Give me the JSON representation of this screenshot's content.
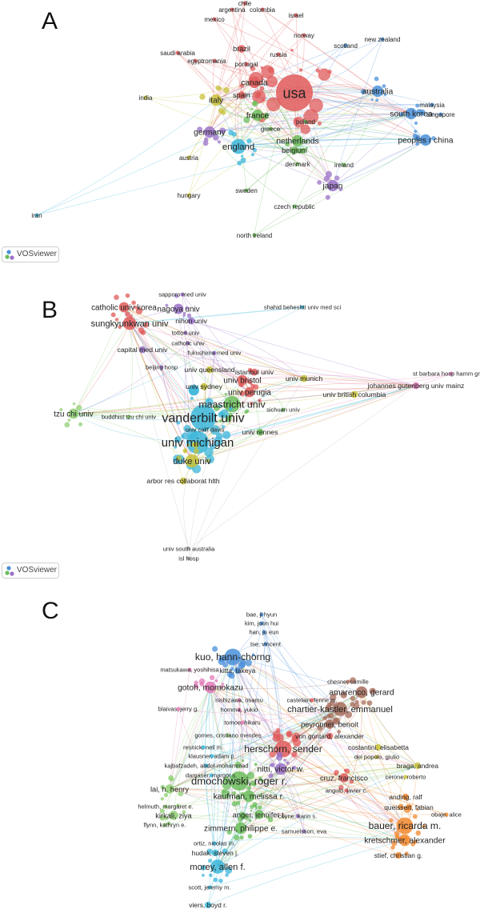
{
  "branding": {
    "vosviewer_label": "VOSviewer"
  },
  "panels": {
    "a": {
      "letter": "A"
    },
    "b": {
      "letter": "B"
    },
    "c": {
      "letter": "C"
    }
  },
  "cluster_colors": {
    "red": "#e05a5a",
    "blue": "#4a90d9",
    "green": "#6bbd5b",
    "yellow": "#c8c23a",
    "purple": "#9a72c8",
    "cyan": "#3bb6d9",
    "orange": "#f28a30",
    "pink": "#e27ab8",
    "brown": "#a56b5a",
    "lightgreen": "#8fcf72",
    "teal": "#2ea39a",
    "gray": "#b8b8b8"
  },
  "networks": {
    "a": {
      "nodes": [
        {
          "label": "usa",
          "cluster": "red",
          "weight": 10
        },
        {
          "label": "chile",
          "cluster": "red",
          "weight": 1
        },
        {
          "label": "argentina",
          "cluster": "red",
          "weight": 1
        },
        {
          "label": "colombia",
          "cluster": "red",
          "weight": 1
        },
        {
          "label": "mexico",
          "cluster": "red",
          "weight": 1
        },
        {
          "label": "israel",
          "cluster": "red",
          "weight": 1
        },
        {
          "label": "brazil",
          "cluster": "red",
          "weight": 2
        },
        {
          "label": "norway",
          "cluster": "red",
          "weight": 1
        },
        {
          "label": "saudi arabia",
          "cluster": "red",
          "weight": 1
        },
        {
          "label": "egypt",
          "cluster": "red",
          "weight": 1
        },
        {
          "label": "romania",
          "cluster": "red",
          "weight": 1
        },
        {
          "label": "portugal",
          "cluster": "red",
          "weight": 1
        },
        {
          "label": "russia",
          "cluster": "red",
          "weight": 1
        },
        {
          "label": "canada",
          "cluster": "red",
          "weight": 3
        },
        {
          "label": "spain",
          "cluster": "red",
          "weight": 2
        },
        {
          "label": "scotland",
          "cluster": "blue",
          "weight": 1
        },
        {
          "label": "new zealand",
          "cluster": "blue",
          "weight": 1
        },
        {
          "label": "australia",
          "cluster": "blue",
          "weight": 3
        },
        {
          "label": "malaysia",
          "cluster": "blue",
          "weight": 1
        },
        {
          "label": "singapore",
          "cluster": "blue",
          "weight": 1
        },
        {
          "label": "south korea",
          "cluster": "blue",
          "weight": 3
        },
        {
          "label": "peoples r china",
          "cluster": "blue",
          "weight": 3
        },
        {
          "label": "india",
          "cluster": "yellow",
          "weight": 1
        },
        {
          "label": "italy",
          "cluster": "yellow",
          "weight": 3
        },
        {
          "label": "austria",
          "cluster": "yellow",
          "weight": 1
        },
        {
          "label": "hungary",
          "cluster": "yellow",
          "weight": 1
        },
        {
          "label": "france",
          "cluster": "green",
          "weight": 3
        },
        {
          "label": "greece",
          "cluster": "green",
          "weight": 1
        },
        {
          "label": "poland",
          "cluster": "green",
          "weight": 1
        },
        {
          "label": "netherlands",
          "cluster": "green",
          "weight": 3
        },
        {
          "label": "belgium",
          "cluster": "green",
          "weight": 2
        },
        {
          "label": "denmark",
          "cluster": "green",
          "weight": 1
        },
        {
          "label": "ireland",
          "cluster": "green",
          "weight": 1
        },
        {
          "label": "sweden",
          "cluster": "green",
          "weight": 1
        },
        {
          "label": "czech republic",
          "cluster": "green",
          "weight": 1
        },
        {
          "label": "north ireland",
          "cluster": "green",
          "weight": 1
        },
        {
          "label": "germany",
          "cluster": "purple",
          "weight": 3
        },
        {
          "label": "japan",
          "cluster": "purple",
          "weight": 3
        },
        {
          "label": "england",
          "cluster": "cyan",
          "weight": 4
        },
        {
          "label": "iran",
          "cluster": "cyan",
          "weight": 1
        }
      ]
    },
    "b": {
      "nodes": [
        {
          "label": "sapporo med univ",
          "cluster": "purple",
          "weight": 1
        },
        {
          "label": "catholic univ korea",
          "cluster": "red",
          "weight": 3
        },
        {
          "label": "nagoya univ",
          "cluster": "purple",
          "weight": 3
        },
        {
          "label": "nihon univ",
          "cluster": "purple",
          "weight": 2
        },
        {
          "label": "sungkyunkwan univ",
          "cluster": "red",
          "weight": 4
        },
        {
          "label": "tottori univ",
          "cluster": "purple",
          "weight": 1
        },
        {
          "label": "catholic univ",
          "cluster": "purple",
          "weight": 1
        },
        {
          "label": "shahid beheshti univ med sci",
          "cluster": "cyan",
          "weight": 1
        },
        {
          "label": "capital med univ",
          "cluster": "purple",
          "weight": 2
        },
        {
          "label": "fukushima med univ",
          "cluster": "purple",
          "weight": 1
        },
        {
          "label": "beijing hosp",
          "cluster": "purple",
          "weight": 1
        },
        {
          "label": "univ queensland",
          "cluster": "yellow",
          "weight": 2
        },
        {
          "label": "istanbul univ",
          "cluster": "red",
          "weight": 2
        },
        {
          "label": "univ bristol",
          "cluster": "red",
          "weight": 3
        },
        {
          "label": "univ sydney",
          "cluster": "yellow",
          "weight": 2
        },
        {
          "label": "univ munich",
          "cluster": "yellow",
          "weight": 2
        },
        {
          "label": "st barbara hosp hamm gmbh",
          "cluster": "pink",
          "weight": 1
        },
        {
          "label": "johannes gutenberg univ mainz",
          "cluster": "pink",
          "weight": 2
        },
        {
          "label": "univ british columbia",
          "cluster": "yellow",
          "weight": 2
        },
        {
          "label": "univ perugia",
          "cluster": "red",
          "weight": 3
        },
        {
          "label": "maastricht univ",
          "cluster": "green",
          "weight": 5
        },
        {
          "label": "tzu chi univ",
          "cluster": "lightgreen",
          "weight": 3
        },
        {
          "label": "buddhist tzu chi univ",
          "cluster": "lightgreen",
          "weight": 1
        },
        {
          "label": "vanderbilt univ",
          "cluster": "cyan",
          "weight": 8
        },
        {
          "label": "sichuan univ",
          "cluster": "green",
          "weight": 1
        },
        {
          "label": "univ calif davis",
          "cluster": "cyan",
          "weight": 1
        },
        {
          "label": "univ rennes",
          "cluster": "green",
          "weight": 2
        },
        {
          "label": "univ michigan",
          "cluster": "cyan",
          "weight": 7
        },
        {
          "label": "duke univ",
          "cluster": "yellow",
          "weight": 4
        },
        {
          "label": "arbor res collaborat hlth",
          "cluster": "yellow",
          "weight": 2
        },
        {
          "label": "univ south australia",
          "cluster": "gray",
          "weight": 1
        },
        {
          "label": "isl hosp",
          "cluster": "gray",
          "weight": 1
        }
      ]
    },
    "c": {
      "nodes": [
        {
          "label": "bae, ji hyun",
          "cluster": "blue",
          "weight": 1
        },
        {
          "label": "kim, joon hui",
          "cluster": "blue",
          "weight": 1
        },
        {
          "label": "han, ju eun",
          "cluster": "blue",
          "weight": 1
        },
        {
          "label": "tse, vincent",
          "cluster": "blue",
          "weight": 1
        },
        {
          "label": "kuo, hann-chorng",
          "cluster": "blue",
          "weight": 6
        },
        {
          "label": "matsukawa, yoshihisa",
          "cluster": "pink",
          "weight": 1
        },
        {
          "label": "kitta, takeya",
          "cluster": "blue",
          "weight": 2
        },
        {
          "label": "chesne, camille",
          "cluster": "brown",
          "weight": 1
        },
        {
          "label": "gotoh, momokazu",
          "cluster": "pink",
          "weight": 4
        },
        {
          "label": "amarenco, gerard",
          "cluster": "brown",
          "weight": 4
        },
        {
          "label": "nishizawa, osamu",
          "cluster": "pink",
          "weight": 1
        },
        {
          "label": "castelain, fenne m.",
          "cluster": "red",
          "weight": 1
        },
        {
          "label": "blaivas, jerry g.",
          "cluster": "pink",
          "weight": 1
        },
        {
          "label": "homma, yukio",
          "cluster": "pink",
          "weight": 1
        },
        {
          "label": "chartier-kastler, emmanuel",
          "cluster": "brown",
          "weight": 5
        },
        {
          "label": "tomoe, hikaru",
          "cluster": "pink",
          "weight": 1
        },
        {
          "label": "peyronnet, benoit",
          "cluster": "brown",
          "weight": 3
        },
        {
          "label": "gomes, cristiano mendes",
          "cluster": "lightgreen",
          "weight": 1
        },
        {
          "label": "von gontard, alexander",
          "cluster": "red",
          "weight": 2
        },
        {
          "label": "resnick, neil m.",
          "cluster": "cyan",
          "weight": 1
        },
        {
          "label": "costantini, elisabetta",
          "cluster": "yellow",
          "weight": 2
        },
        {
          "label": "klausner, adam p.",
          "cluster": "cyan",
          "weight": 1
        },
        {
          "label": "herschorn, sender",
          "cluster": "red",
          "weight": 6
        },
        {
          "label": "del popolo, giulio",
          "cluster": "yellow",
          "weight": 1
        },
        {
          "label": "kajbafzadeh, abdol-mohammad",
          "cluster": "cyan",
          "weight": 1
        },
        {
          "label": "braga, andrea",
          "cluster": "yellow",
          "weight": 2
        },
        {
          "label": "damaser, margot s.",
          "cluster": "cyan",
          "weight": 1
        },
        {
          "label": "cerone, roberto",
          "cluster": "yellow",
          "weight": 1
        },
        {
          "label": "nitti, victor w.",
          "cluster": "purple",
          "weight": 4
        },
        {
          "label": "dmochowski, roger r.",
          "cluster": "green",
          "weight": 7
        },
        {
          "label": "cruz, francisco",
          "cluster": "red",
          "weight": 3
        },
        {
          "label": "lai, h. henry",
          "cluster": "lightgreen",
          "weight": 3
        },
        {
          "label": "angulo, javier c.",
          "cluster": "red",
          "weight": 1
        },
        {
          "label": "kaufman, melissa r.",
          "cluster": "green",
          "weight": 4
        },
        {
          "label": "helmuth, margaret e.",
          "cluster": "lightgreen",
          "weight": 1
        },
        {
          "label": "anding, ralf",
          "cluster": "orange",
          "weight": 2
        },
        {
          "label": "kirkali, ziya",
          "cluster": "lightgreen",
          "weight": 3
        },
        {
          "label": "queissert, fabian",
          "cluster": "orange",
          "weight": 2
        },
        {
          "label": "flynn, kathryn e.",
          "cluster": "lightgreen",
          "weight": 1
        },
        {
          "label": "anger, jennifer t.",
          "cluster": "green",
          "weight": 3
        },
        {
          "label": "coyne, karin s.",
          "cluster": "purple",
          "weight": 1
        },
        {
          "label": "obaje, alice",
          "cluster": "orange",
          "weight": 1
        },
        {
          "label": "zimmern, philippe e.",
          "cluster": "green",
          "weight": 4
        },
        {
          "label": "bauer, ricarda m.",
          "cluster": "orange",
          "weight": 6
        },
        {
          "label": "samuelsson, eva",
          "cluster": "purple",
          "weight": 1
        },
        {
          "label": "ortiz, nicolas m.",
          "cluster": "cyan",
          "weight": 1
        },
        {
          "label": "kretschmer, alexander",
          "cluster": "orange",
          "weight": 4
        },
        {
          "label": "hudak, steven j.",
          "cluster": "cyan",
          "weight": 2
        },
        {
          "label": "stief, christian g.",
          "cluster": "orange",
          "weight": 2
        },
        {
          "label": "morey, allen f.",
          "cluster": "cyan",
          "weight": 5
        },
        {
          "label": "scott, jeremy m.",
          "cluster": "cyan",
          "weight": 1
        },
        {
          "label": "viers, boyd r.",
          "cluster": "cyan",
          "weight": 2
        }
      ]
    }
  }
}
